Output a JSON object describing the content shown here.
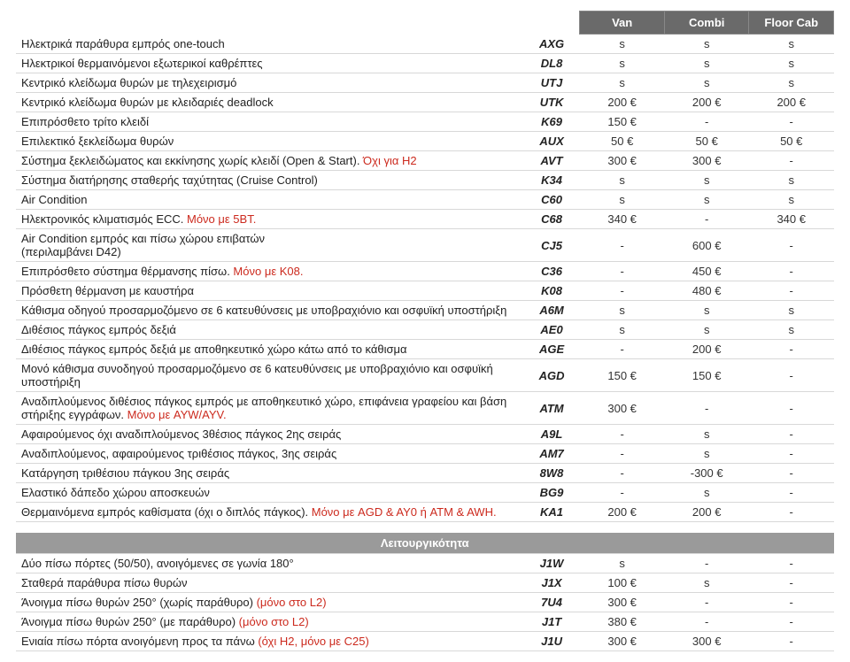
{
  "header": {
    "c1": "Van",
    "c2": "Combi",
    "c3": "Floor Cab"
  },
  "rows1": [
    {
      "desc": "Ηλεκτρικά παράθυρα εμπρός one-touch",
      "code": "AXG",
      "v": [
        "s",
        "s",
        "s"
      ]
    },
    {
      "desc": "Ηλεκτρικοί θερμαινόμενοι εξωτερικοί καθρέπτες",
      "code": "DL8",
      "v": [
        "s",
        "s",
        "s"
      ]
    },
    {
      "desc": "Κεντρικό κλείδωμα θυρών με τηλεχειρισμό",
      "code": "UTJ",
      "v": [
        "s",
        "s",
        "s"
      ]
    },
    {
      "desc": "Κεντρικό κλείδωμα θυρών με κλειδαριές deadlock",
      "code": "UTK",
      "v": [
        "200 €",
        "200 €",
        "200 €"
      ]
    },
    {
      "desc": "Επιπρόσθετο τρίτο κλειδί",
      "code": "K69",
      "v": [
        "150 €",
        "-",
        "-"
      ]
    },
    {
      "desc": "Επιλεκτικό ξεκλείδωμα θυρών",
      "code": "AUX",
      "v": [
        "50 €",
        "50 €",
        "50 €"
      ]
    },
    {
      "desc": "Σύστημα ξεκλειδώματος και εκκίνησης χωρίς κλειδί (Open & Start). ",
      "red": "Όχι για H2",
      "code": "AVT",
      "v": [
        "300 €",
        "300 €",
        "-"
      ]
    },
    {
      "desc": "Σύστημα διατήρησης σταθερής ταχύτητας (Cruise Control)",
      "code": "K34",
      "v": [
        "s",
        "s",
        "s"
      ]
    },
    {
      "desc": "Air Condition",
      "code": "C60",
      "v": [
        "s",
        "s",
        "s"
      ]
    },
    {
      "desc": "Ηλεκτρονικός κλιματισμός ECC. ",
      "red": "Μόνο με 5BT.",
      "code": "C68",
      "v": [
        "340 €",
        "-",
        "340 €"
      ]
    },
    {
      "desc": "Air Condition εμπρός και πίσω χώρου επιβατών\n(περιλαμβάνει D42)",
      "code": "CJ5",
      "v": [
        "-",
        "600 €",
        "-"
      ]
    },
    {
      "desc": "Επιπρόσθετο σύστημα θέρμανσης πίσω. ",
      "red": "Μόνο με K08.",
      "code": "C36",
      "v": [
        "-",
        "450 €",
        "-"
      ]
    },
    {
      "desc": "Πρόσθετη θέρμανση με καυστήρα",
      "code": "K08",
      "v": [
        "-",
        "480 €",
        "-"
      ]
    },
    {
      "desc": "Κάθισμα οδηγού προσαρμοζόμενο σε 6 κατευθύνσεις με υποβραχιόνιο και οσφυϊκή υποστήριξη",
      "code": "A6M",
      "v": [
        "s",
        "s",
        "s"
      ]
    },
    {
      "desc": "Διθέσιος πάγκος εμπρός δεξιά",
      "code": "AE0",
      "v": [
        "s",
        "s",
        "s"
      ]
    },
    {
      "desc": "Διθέσιος πάγκος εμπρός δεξιά με αποθηκευτικό χώρο κάτω από το κάθισμα",
      "code": "AGE",
      "v": [
        "-",
        "200 €",
        "-"
      ]
    },
    {
      "desc": "Μονό κάθισμα συνοδηγού προσαρμοζόμενο σε 6 κατευθύνσεις με υποβραχιόνιο και οσφυϊκή υποστήριξη",
      "code": "AGD",
      "v": [
        "150 €",
        "150 €",
        "-"
      ]
    },
    {
      "desc": "Αναδιπλούμενος διθέσιος πάγκος εμπρός  με αποθηκευτικό χώρο, επιφάνεια γραφείου και βάση στήριξης εγγράφων. ",
      "red": "Μόνο με AYW/AYV.",
      "code": "ATM",
      "v": [
        "300 €",
        "-",
        "-"
      ]
    },
    {
      "desc": "Αφαιρούμενος όχι αναδιπλούμενος 3θέσιος πάγκος 2ης σειράς",
      "code": "A9L",
      "v": [
        "-",
        "s",
        "-"
      ]
    },
    {
      "desc": "Αναδιπλούμενος, αφαιρούμενος τριθέσιος πάγκος, 3ης σειράς",
      "code": "AM7",
      "v": [
        "-",
        "s",
        "-"
      ]
    },
    {
      "desc": "Κατάργηση τριθέσιου πάγκου 3ης σειράς",
      "code": "8W8",
      "v": [
        "-",
        "-300 €",
        "-"
      ]
    },
    {
      "desc": "Ελαστικό δάπεδο χώρου αποσκευών",
      "code": "BG9",
      "v": [
        "-",
        "s",
        "-"
      ]
    },
    {
      "desc": "Θερμαινόμενα εμπρός καθίσματα (όχι ο διπλός πάγκος). ",
      "red": "Μόνο με AGD & AY0 ή ATM & AWH.",
      "code": "KA1",
      "v": [
        "200 €",
        "200 €",
        "-"
      ]
    }
  ],
  "section2": "Λειτουργικότητα",
  "rows2": [
    {
      "desc": "Δύο πίσω πόρτες (50/50), ανοιγόμενες σε γωνία 180°",
      "code": "J1W",
      "v": [
        "s",
        "-",
        "-"
      ]
    },
    {
      "desc": "Σταθερά παράθυρα πίσω θυρών",
      "code": "J1X",
      "v": [
        "100 €",
        "s",
        "-"
      ]
    },
    {
      "desc": "Άνοιγμα πίσω θυρών 250° (χωρίς παράθυρο) ",
      "red": "(μόνο στο L2)",
      "code": "7U4",
      "v": [
        "300 €",
        "-",
        "-"
      ]
    },
    {
      "desc": "Άνοιγμα πίσω θυρών 250° (με παράθυρο) ",
      "red": "(μόνο στο L2)",
      "code": "J1T",
      "v": [
        "380 €",
        "-",
        "-"
      ]
    },
    {
      "desc": "Ενιαία πίσω πόρτα ανοιγόμενη προς τα πάνω ",
      "red": "(όχι H2, μόνο με C25)",
      "code": "J1U",
      "v": [
        "300 €",
        "300 €",
        "-"
      ]
    }
  ]
}
